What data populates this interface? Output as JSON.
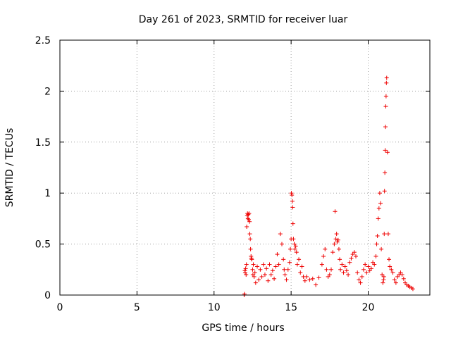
{
  "chart_data": {
    "type": "scatter",
    "title": "Day 261 of 2023, SRMTID for receiver luar",
    "xlabel": "GPS time / hours",
    "ylabel": "SRMTID / TECUs",
    "xlim": [
      0,
      24
    ],
    "ylim": [
      0,
      2.5
    ],
    "xticks": [
      0,
      5,
      10,
      15,
      20
    ],
    "xtick_labels": [
      "0",
      "5",
      "10",
      "15",
      "20"
    ],
    "yticks": [
      0,
      0.5,
      1,
      1.5,
      2,
      2.5
    ],
    "ytick_labels": [
      "0",
      "0.5",
      "1",
      "1.5",
      "2",
      "2.5"
    ],
    "grid": true,
    "marker": "+",
    "series_color": "#ee0000",
    "series": [
      {
        "name": "SRMTID",
        "x": [
          11.95,
          11.97,
          12.0,
          12.02,
          12.05,
          12.08,
          12.1,
          12.12,
          12.15,
          12.17,
          12.2,
          12.22,
          12.25,
          12.27,
          12.3,
          12.32,
          12.35,
          12.37,
          12.4,
          12.42,
          12.45,
          12.5,
          12.52,
          12.55,
          12.6,
          12.65,
          12.7,
          12.8,
          12.9,
          13.0,
          13.1,
          13.2,
          13.3,
          13.4,
          13.5,
          13.6,
          13.7,
          13.8,
          13.9,
          14.0,
          14.1,
          14.2,
          14.3,
          14.4,
          14.5,
          14.55,
          14.6,
          14.7,
          14.8,
          14.9,
          14.95,
          15.0,
          15.02,
          15.05,
          15.08,
          15.1,
          15.12,
          15.15,
          15.2,
          15.25,
          15.3,
          15.35,
          15.4,
          15.5,
          15.6,
          15.7,
          15.8,
          15.9,
          16.0,
          16.2,
          16.4,
          16.6,
          16.8,
          17.0,
          17.1,
          17.2,
          17.3,
          17.4,
          17.5,
          17.6,
          17.7,
          17.8,
          17.85,
          17.9,
          17.95,
          18.0,
          18.05,
          18.1,
          18.15,
          18.2,
          18.3,
          18.4,
          18.5,
          18.6,
          18.7,
          18.8,
          18.9,
          19.0,
          19.1,
          19.2,
          19.3,
          19.4,
          19.5,
          19.6,
          19.7,
          19.8,
          19.9,
          20.0,
          20.1,
          20.2,
          20.3,
          20.4,
          20.5,
          20.55,
          20.6,
          20.65,
          20.7,
          20.75,
          20.8,
          20.85,
          20.9,
          20.95,
          21.0,
          21.02,
          21.04,
          21.06,
          21.08,
          21.1,
          21.12,
          21.14,
          21.16,
          21.18,
          21.2,
          21.25,
          21.3,
          21.35,
          21.4,
          21.5,
          21.6,
          21.7,
          21.8,
          21.9,
          22.0,
          22.1,
          22.2,
          22.3,
          22.4,
          22.5,
          22.6,
          22.7,
          22.8,
          22.9
        ],
        "values": [
          0.0,
          0.01,
          0.24,
          0.22,
          0.26,
          0.2,
          0.3,
          0.67,
          0.78,
          0.8,
          0.75,
          0.79,
          0.74,
          0.8,
          0.72,
          0.6,
          0.55,
          0.45,
          0.38,
          0.36,
          0.35,
          0.25,
          0.2,
          0.3,
          0.18,
          0.22,
          0.12,
          0.28,
          0.15,
          0.25,
          0.18,
          0.3,
          0.2,
          0.26,
          0.14,
          0.3,
          0.2,
          0.24,
          0.16,
          0.28,
          0.4,
          0.3,
          0.6,
          0.5,
          0.35,
          0.25,
          0.2,
          0.15,
          0.25,
          0.32,
          0.45,
          0.55,
          1.0,
          0.98,
          0.92,
          0.86,
          0.7,
          0.55,
          0.5,
          0.45,
          0.48,
          0.42,
          0.3,
          0.35,
          0.22,
          0.28,
          0.18,
          0.14,
          0.18,
          0.15,
          0.16,
          0.1,
          0.17,
          0.3,
          0.38,
          0.45,
          0.25,
          0.18,
          0.2,
          0.25,
          0.42,
          0.5,
          0.82,
          0.55,
          0.6,
          0.52,
          0.54,
          0.45,
          0.35,
          0.25,
          0.3,
          0.22,
          0.28,
          0.24,
          0.2,
          0.32,
          0.36,
          0.4,
          0.42,
          0.38,
          0.22,
          0.15,
          0.12,
          0.18,
          0.25,
          0.3,
          0.22,
          0.28,
          0.24,
          0.26,
          0.32,
          0.3,
          0.38,
          0.5,
          0.58,
          0.75,
          0.85,
          1.0,
          0.9,
          0.45,
          0.2,
          0.12,
          0.15,
          0.18,
          0.6,
          1.02,
          1.2,
          1.42,
          1.65,
          1.85,
          1.95,
          2.08,
          2.13,
          1.4,
          0.6,
          0.35,
          0.28,
          0.25,
          0.22,
          0.15,
          0.12,
          0.18,
          0.2,
          0.22,
          0.2,
          0.16,
          0.12,
          0.1,
          0.09,
          0.08,
          0.07,
          0.06
        ]
      }
    ]
  }
}
